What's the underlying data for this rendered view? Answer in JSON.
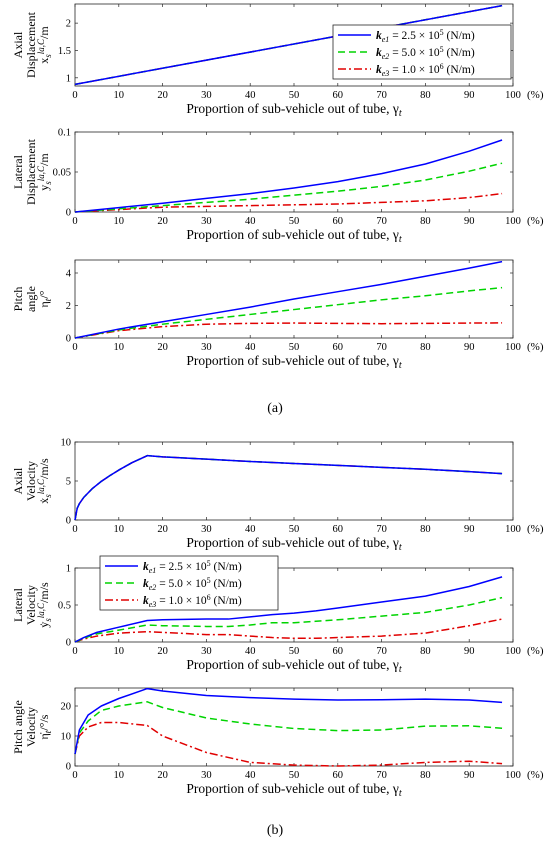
{
  "figure": {
    "caption_a": "(a)",
    "caption_b": "(b)",
    "x_unit": "(%)"
  },
  "legend": {
    "entries": [
      "k_{e1} = 2.5 × 10^5 (N/m)",
      "k_{e2} = 5.0 × 10^5 (N/m)",
      "k_{e3} = 1.0 × 10^6 (N/m)"
    ]
  },
  "colors": {
    "series1": "#0000ff",
    "series2": "#00d400",
    "series3": "#e00000"
  },
  "chart_data": [
    {
      "type": "line",
      "ylabel": [
        "Axial",
        "Displacement",
        "x_s^{la,C}/m"
      ],
      "xlabel": "Proportion of sub-vehicle out of tube, γ_t",
      "xlim": [
        0,
        100
      ],
      "ylim": [
        0.85,
        2.35
      ],
      "xticks": [
        0,
        10,
        20,
        30,
        40,
        50,
        60,
        70,
        80,
        90,
        100
      ],
      "yticks": [
        1,
        1.5,
        2
      ],
      "legend": true,
      "legend_position": "top-right",
      "x": [
        0,
        97.5
      ],
      "series": [
        {
          "name": "k_{e1} = 2.5 × 10^5 (N/m)",
          "values": [
            0.88,
            2.32
          ]
        },
        {
          "name": "k_{e2} = 5.0 × 10^5 (N/m)",
          "values": [
            0.88,
            2.32
          ]
        },
        {
          "name": "k_{e3} = 1.0 × 10^6 (N/m)",
          "values": [
            0.88,
            2.32
          ]
        }
      ]
    },
    {
      "type": "line",
      "ylabel": [
        "Lateral",
        "Displacement",
        "y_s^{la,C}/m"
      ],
      "xlabel": "Proportion of sub-vehicle out of tube, γ_t",
      "xlim": [
        0,
        100
      ],
      "ylim": [
        0,
        0.1
      ],
      "xticks": [
        0,
        10,
        20,
        30,
        40,
        50,
        60,
        70,
        80,
        90,
        100
      ],
      "yticks": [
        0,
        0.05,
        0.1
      ],
      "x": [
        0,
        10,
        20,
        30,
        40,
        50,
        60,
        70,
        80,
        90,
        97.5
      ],
      "series": [
        {
          "name": "k_{e1} = 2.5 × 10^5 (N/m)",
          "values": [
            0,
            0.0055,
            0.011,
            0.017,
            0.023,
            0.03,
            0.038,
            0.048,
            0.06,
            0.076,
            0.09
          ]
        },
        {
          "name": "k_{e2} = 5.0 × 10^5 (N/m)",
          "values": [
            0,
            0.004,
            0.008,
            0.012,
            0.016,
            0.021,
            0.026,
            0.032,
            0.04,
            0.051,
            0.061
          ]
        },
        {
          "name": "k_{e3} = 1.0 × 10^6 (N/m)",
          "values": [
            0,
            0.003,
            0.006,
            0.007,
            0.008,
            0.009,
            0.01,
            0.012,
            0.014,
            0.018,
            0.023
          ]
        }
      ]
    },
    {
      "type": "line",
      "ylabel": [
        "Pitch",
        "angle",
        "η_t/°"
      ],
      "xlabel": "Proportion of sub-vehicle out of tube, γ_t",
      "xlim": [
        0,
        100
      ],
      "ylim": [
        0,
        4.8
      ],
      "xticks": [
        0,
        10,
        20,
        30,
        40,
        50,
        60,
        70,
        80,
        90,
        100
      ],
      "yticks": [
        0,
        2,
        4
      ],
      "x": [
        0,
        10,
        20,
        30,
        40,
        50,
        60,
        70,
        80,
        90,
        97.5
      ],
      "series": [
        {
          "name": "k_{e1} = 2.5 × 10^5 (N/m)",
          "values": [
            0,
            0.55,
            1.0,
            1.45,
            1.9,
            2.4,
            2.85,
            3.3,
            3.8,
            4.3,
            4.7
          ]
        },
        {
          "name": "k_{e2} = 5.0 × 10^5 (N/m)",
          "values": [
            0,
            0.5,
            0.85,
            1.15,
            1.45,
            1.75,
            2.05,
            2.35,
            2.6,
            2.9,
            3.1
          ]
        },
        {
          "name": "k_{e3} = 1.0 × 10^6 (N/m)",
          "values": [
            0,
            0.45,
            0.7,
            0.85,
            0.9,
            0.92,
            0.9,
            0.88,
            0.9,
            0.92,
            0.93
          ]
        }
      ]
    },
    {
      "type": "line",
      "ylabel": [
        "Axial",
        "Velocity",
        "ẋ_s^{la,C}/m/s"
      ],
      "xlabel": "Proportion of sub-vehicle out of tube, γ_t",
      "xlim": [
        0,
        100
      ],
      "ylim": [
        0,
        10
      ],
      "xticks": [
        0,
        10,
        20,
        30,
        40,
        50,
        60,
        70,
        80,
        90,
        100
      ],
      "yticks": [
        0,
        5,
        10
      ],
      "x": [
        0,
        0.5,
        1,
        2,
        4,
        6,
        8,
        10,
        13,
        16.5,
        20,
        30,
        40,
        50,
        60,
        70,
        80,
        90,
        97.5
      ],
      "series": [
        {
          "name": "k_{e1} = 2.5 × 10^5 (N/m)",
          "values": [
            0,
            1.5,
            2.1,
            2.9,
            4.05,
            4.95,
            5.7,
            6.4,
            7.35,
            8.25,
            8.1,
            7.8,
            7.5,
            7.25,
            7.0,
            6.75,
            6.5,
            6.2,
            5.95
          ]
        },
        {
          "name": "k_{e2} = 5.0 × 10^5 (N/m)",
          "values": [
            0,
            1.5,
            2.1,
            2.9,
            4.05,
            4.95,
            5.7,
            6.4,
            7.35,
            8.25,
            8.1,
            7.8,
            7.5,
            7.25,
            7.0,
            6.75,
            6.5,
            6.2,
            5.95
          ]
        },
        {
          "name": "k_{e3} = 1.0 × 10^6 (N/m)",
          "values": [
            0,
            1.5,
            2.1,
            2.9,
            4.05,
            4.95,
            5.7,
            6.4,
            7.35,
            8.25,
            8.1,
            7.8,
            7.5,
            7.25,
            7.0,
            6.75,
            6.5,
            6.2,
            5.95
          ]
        }
      ]
    },
    {
      "type": "line",
      "ylabel": [
        "Lateral",
        "Velocity",
        "ẏ_s^{la,C}/m/s"
      ],
      "xlabel": "Proportion of sub-vehicle out of tube, γ_t",
      "xlim": [
        0,
        100
      ],
      "ylim": [
        0,
        1
      ],
      "xticks": [
        0,
        10,
        20,
        30,
        40,
        50,
        60,
        70,
        80,
        90,
        100
      ],
      "yticks": [
        0,
        0.5,
        1
      ],
      "legend": true,
      "legend_position": "top-left",
      "x": [
        0,
        2,
        5,
        10,
        16.5,
        20,
        30,
        35,
        40,
        45,
        50,
        55,
        60,
        70,
        80,
        90,
        97.5
      ],
      "series": [
        {
          "name": "k_{e1} = 2.5 × 10^5 (N/m)",
          "values": [
            0,
            0.06,
            0.13,
            0.2,
            0.29,
            0.3,
            0.31,
            0.31,
            0.34,
            0.37,
            0.39,
            0.42,
            0.46,
            0.54,
            0.62,
            0.75,
            0.88
          ]
        },
        {
          "name": "k_{e2} = 5.0 × 10^5 (N/m)",
          "values": [
            0,
            0.05,
            0.11,
            0.16,
            0.23,
            0.22,
            0.21,
            0.21,
            0.23,
            0.26,
            0.26,
            0.28,
            0.3,
            0.35,
            0.4,
            0.5,
            0.6
          ]
        },
        {
          "name": "k_{e3} = 1.0 × 10^6 (N/m)",
          "values": [
            0,
            0.04,
            0.08,
            0.12,
            0.14,
            0.13,
            0.1,
            0.1,
            0.08,
            0.06,
            0.05,
            0.05,
            0.06,
            0.08,
            0.12,
            0.22,
            0.31
          ]
        }
      ]
    },
    {
      "type": "line",
      "ylabel": [
        "Pitch angle",
        "Velocity",
        "η̇_t/°/s"
      ],
      "xlabel": "Proportion of sub-vehicle out of tube, γ_t",
      "xlim": [
        0,
        100
      ],
      "ylim": [
        0,
        26
      ],
      "xticks": [
        0,
        10,
        20,
        30,
        40,
        50,
        60,
        70,
        80,
        90,
        100
      ],
      "yticks": [
        0,
        10,
        20
      ],
      "x": [
        0,
        1,
        3,
        6,
        10,
        16.5,
        20,
        30,
        40,
        50,
        60,
        70,
        80,
        90,
        97.5
      ],
      "series": [
        {
          "name": "k_{e1} = 2.5 × 10^5 (N/m)",
          "values": [
            4,
            12,
            17,
            20,
            22.5,
            25.8,
            25,
            23.5,
            22.8,
            22.3,
            22,
            22.1,
            22.3,
            22,
            21.2
          ]
        },
        {
          "name": "k_{e2} = 5.0 × 10^5 (N/m)",
          "values": [
            4,
            11,
            15,
            18.5,
            20,
            21.4,
            19.5,
            16,
            14,
            12.5,
            11.8,
            12,
            13.3,
            13.4,
            12.6
          ]
        },
        {
          "name": "k_{e3} = 1.0 × 10^6 (N/m)",
          "values": [
            4,
            10,
            13,
            14.5,
            14.5,
            13.5,
            10,
            4.5,
            1.2,
            0.3,
            0,
            0.3,
            1.2,
            1.6,
            0.8
          ]
        }
      ]
    }
  ]
}
